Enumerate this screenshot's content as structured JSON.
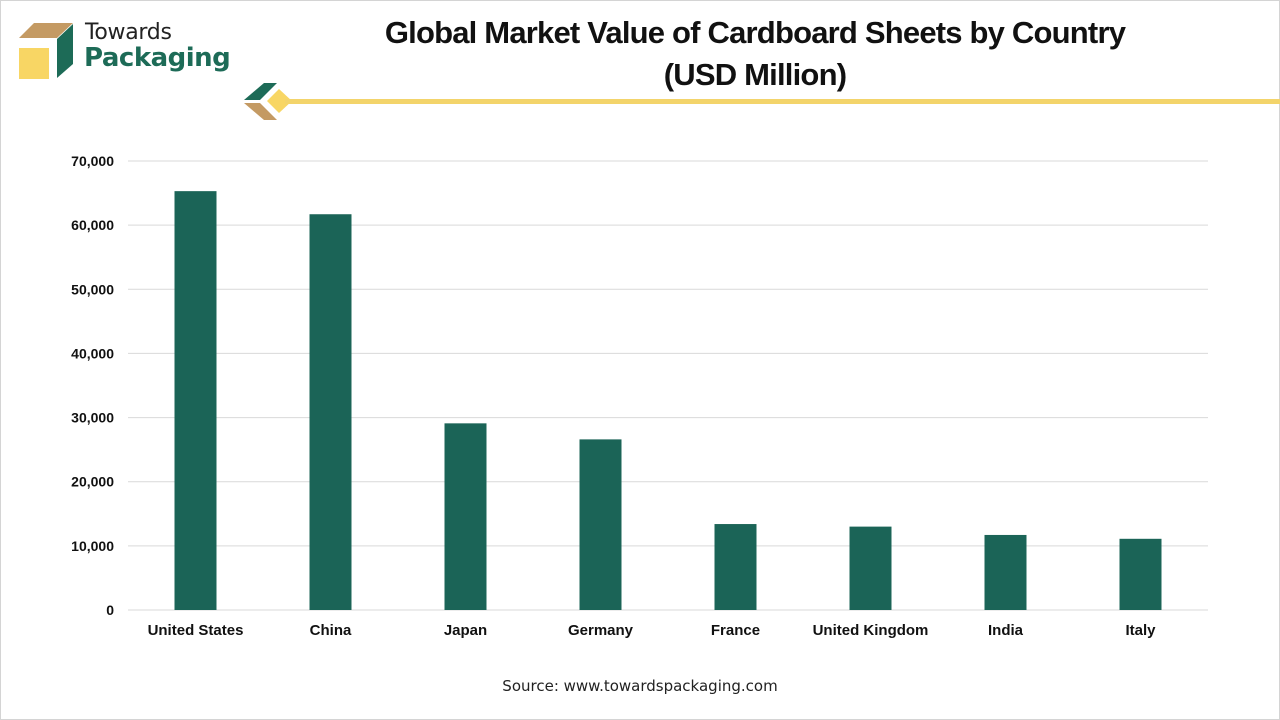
{
  "brand": {
    "line1": "Towards",
    "line2": "Packaging",
    "colors": {
      "green": "#1d6b57",
      "yellow": "#f8d664",
      "tan": "#c49a63"
    }
  },
  "header": {
    "title_line1": "Global Market Value of Cardboard Sheets by Country",
    "title_line2": "(USD Million)"
  },
  "footer": {
    "source": "Source: www.towardspackaging.com"
  },
  "chart_data": {
    "type": "bar",
    "title": "Global Market Value of Cardboard Sheets by Country (USD Million)",
    "xlabel": "",
    "ylabel": "",
    "categories": [
      "United States",
      "China",
      "Japan",
      "Germany",
      "France",
      "United Kingdom",
      "India",
      "Italy"
    ],
    "values": [
      65300,
      61700,
      29100,
      26600,
      13400,
      13000,
      11700,
      11100
    ],
    "ylim": [
      0,
      70000
    ],
    "yticks": [
      0,
      10000,
      20000,
      30000,
      40000,
      50000,
      60000,
      70000
    ],
    "ytick_labels": [
      "0",
      "10,000",
      "20,000",
      "30,000",
      "40,000",
      "50,000",
      "60,000",
      "70,000"
    ],
    "grid": true,
    "legend": "none",
    "bar_color": "#1b6457",
    "grid_color": "#d9d9d9"
  }
}
